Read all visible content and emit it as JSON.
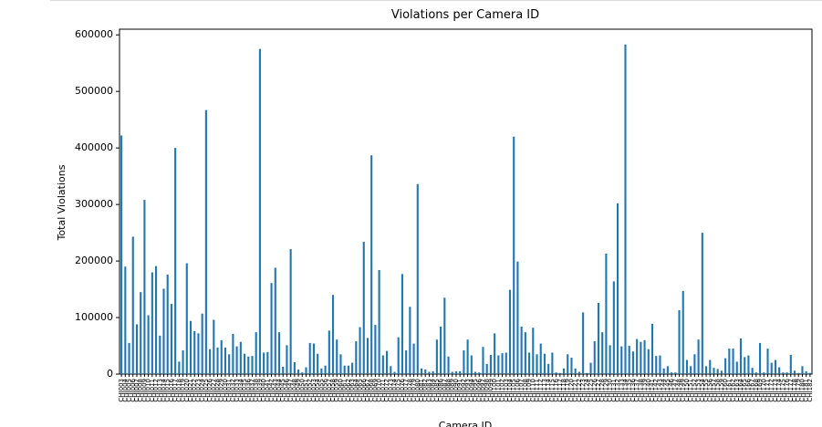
{
  "chart_data": {
    "type": "bar",
    "title": "Violations per Camera ID",
    "x_label": "Camera ID",
    "y_label": "Total Violations",
    "color": "#1f77b4",
    "ylim": [
      0,
      610000
    ],
    "yticks": [
      0,
      100000,
      200000,
      300000,
      400000,
      500000,
      600000
    ],
    "grid": false,
    "categories": [
      "CHI003",
      "CHI004",
      "CHI005",
      "CHI006",
      "CHI007",
      "CHI008",
      "CHI009",
      "CHI010",
      "CHI011",
      "CHI012",
      "CHI013",
      "CHI014",
      "CHI015",
      "CHI016",
      "CHI017",
      "CHI018",
      "CHI019",
      "CHI020",
      "CHI021",
      "CHI022",
      "CHI023",
      "CHI024",
      "CHI025",
      "CHI026",
      "CHI027",
      "CHI028",
      "CHI029",
      "CHI030",
      "CHI031",
      "CHI032",
      "CHI033",
      "CHI034",
      "CHI035",
      "CHI036",
      "CHI037",
      "CHI038",
      "CHI039",
      "CHI040",
      "CHI041",
      "CHI042",
      "CHI043",
      "CHI044",
      "CHI045",
      "CHI046",
      "CHI047",
      "CHI048",
      "CHI049",
      "CHI050",
      "CHI051",
      "CHI052",
      "CHI053",
      "CHI054",
      "CHI055",
      "CHI056",
      "CHI057",
      "CHI058",
      "CHI059",
      "CHI060",
      "CHI061",
      "CHI062",
      "CHI063",
      "CHI064",
      "CHI065",
      "CHI066",
      "CHI067",
      "CHI068",
      "CHI069",
      "CHI070",
      "CHI071",
      "CHI072",
      "CHI073",
      "CHI074",
      "CHI075",
      "CHI076",
      "CHI077",
      "CHI078",
      "CHI079",
      "CHI080",
      "CHI081",
      "CHI082",
      "CHI083",
      "CHI084",
      "CHI085",
      "CHI086",
      "CHI087",
      "CHI088",
      "CHI089",
      "CHI090",
      "CHI091",
      "CHI092",
      "CHI093",
      "CHI094",
      "CHI095",
      "CHI096",
      "CHI097",
      "CHI098",
      "CHI099",
      "CHI100",
      "CHI101",
      "CHI102",
      "CHI103",
      "CHI104",
      "CHI105",
      "CHI106",
      "CHI107",
      "CHI108",
      "CHI109",
      "CHI110",
      "CHI111",
      "CHI112",
      "CHI113",
      "CHI114",
      "CHI115",
      "CHI116",
      "CHI117",
      "CHI118",
      "CHI119",
      "CHI120",
      "CHI121",
      "CHI122",
      "CHI123",
      "CHI124",
      "CHI125",
      "CHI126",
      "CHI127",
      "CHI128",
      "CHI129",
      "CHI130",
      "CHI131",
      "CHI132",
      "CHI133",
      "CHI134",
      "CHI135",
      "CHI136",
      "CHI137",
      "CHI138",
      "CHI139",
      "CHI140",
      "CHI141",
      "CHI142",
      "CHI143",
      "CHI144",
      "CHI145",
      "CHI146",
      "CHI147",
      "CHI148",
      "CHI149",
      "CHI150",
      "CHI151",
      "CHI152",
      "CHI153",
      "CHI154",
      "CHI155",
      "CHI156",
      "CHI157",
      "CHI158",
      "CHI159",
      "CHI160",
      "CHI161",
      "CHI162",
      "CHI163",
      "CHI164",
      "CHI165",
      "CHI166",
      "CHI167",
      "CHI168",
      "CHI169",
      "CHI170",
      "CHI171",
      "CHI172",
      "CHI173",
      "CHI174",
      "CHI175",
      "CHI176",
      "CHI177",
      "CHI178",
      "CHI179",
      "CHI180",
      "CHI181",
      "CHI182"
    ],
    "values": [
      422000,
      190000,
      55000,
      243000,
      88000,
      145000,
      308000,
      104000,
      180000,
      191000,
      68000,
      151000,
      176000,
      124000,
      400000,
      22000,
      42000,
      196000,
      94000,
      76000,
      72000,
      107000,
      467000,
      44000,
      96000,
      47000,
      60000,
      47000,
      35000,
      71000,
      49000,
      57000,
      36000,
      31000,
      32000,
      74000,
      575000,
      38000,
      39000,
      161000,
      188000,
      74000,
      13000,
      51000,
      221000,
      21000,
      8000,
      3000,
      12000,
      55000,
      54000,
      36000,
      10000,
      15000,
      77000,
      140000,
      61000,
      35000,
      15000,
      15000,
      20000,
      58000,
      83000,
      234000,
      64000,
      387000,
      87000,
      184000,
      33000,
      41000,
      14000,
      4000,
      65000,
      177000,
      42000,
      119000,
      54000,
      336000,
      10000,
      8000,
      4000,
      5000,
      61000,
      84000,
      135000,
      31000,
      4000,
      5000,
      5000,
      42000,
      61000,
      33000,
      4000,
      3000,
      48000,
      18000,
      34000,
      72000,
      33000,
      37000,
      38000,
      149000,
      420000,
      199000,
      84000,
      74000,
      38000,
      82000,
      35000,
      54000,
      36000,
      18000,
      38000,
      3000,
      2000,
      10000,
      35000,
      29000,
      10000,
      4000,
      109000,
      2000,
      20000,
      58000,
      126000,
      74000,
      213000,
      51000,
      164000,
      302000,
      49000,
      583000,
      50000,
      40000,
      62000,
      57000,
      60000,
      44000,
      89000,
      32000,
      33000,
      10000,
      14000,
      3000,
      3000,
      113000,
      147000,
      25000,
      14000,
      35000,
      61000,
      250000,
      14000,
      25000,
      11000,
      9000,
      6000,
      28000,
      45000,
      45000,
      22000,
      63000,
      30000,
      33000,
      11000,
      3000,
      55000,
      3000,
      45000,
      20000,
      25000,
      12000,
      3000,
      3000,
      34000,
      6000,
      2000,
      14000,
      5000,
      2000
    ]
  }
}
